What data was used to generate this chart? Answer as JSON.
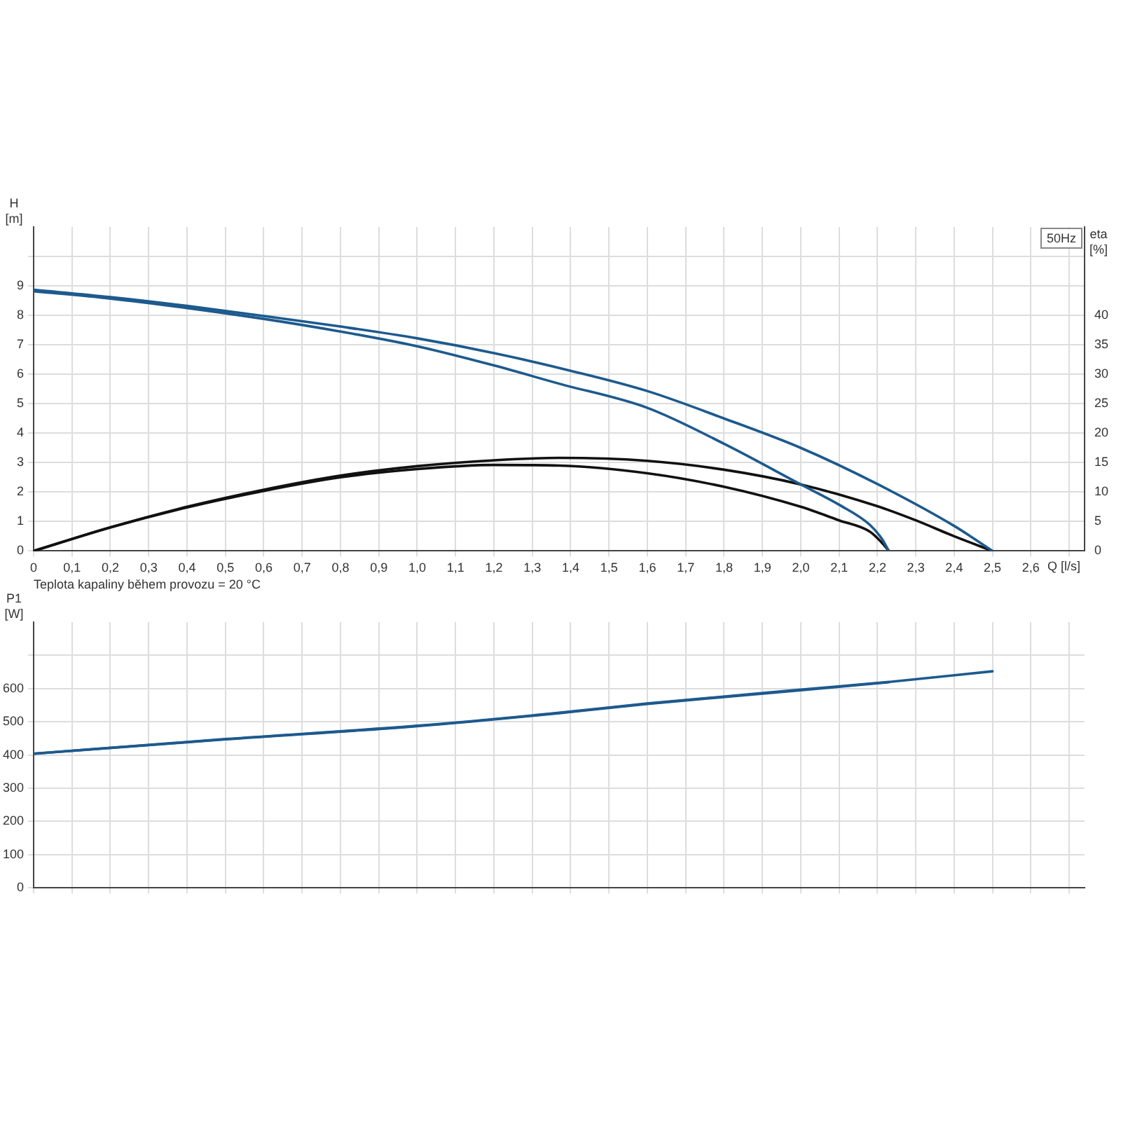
{
  "chart_data": [
    {
      "type": "line",
      "xlabel": "Q [l/s]",
      "ylabel": "H [m]",
      "y2label": "eta [%]",
      "xlim": [
        0,
        2.74
      ],
      "xticks": [
        0,
        {
          "value": 0.1,
          "label": "0,1"
        },
        {
          "value": 0.2,
          "label": "0,2"
        },
        {
          "value": 0.3,
          "label": "0,3"
        },
        {
          "value": 0.4,
          "label": "0,4"
        },
        {
          "value": 0.5,
          "label": "0,5"
        },
        {
          "value": 0.6,
          "label": "0,6"
        },
        {
          "value": 0.7,
          "label": "0,7"
        },
        {
          "value": 0.8,
          "label": "0,8"
        },
        {
          "value": 0.9,
          "label": "0,9"
        },
        {
          "value": 1.0,
          "label": "1,0"
        },
        {
          "value": 1.1,
          "label": "1,1"
        },
        {
          "value": 1.2,
          "label": "1,2"
        },
        {
          "value": 1.3,
          "label": "1,3"
        },
        {
          "value": 1.4,
          "label": "1,4"
        },
        {
          "value": 1.5,
          "label": "1,5"
        },
        {
          "value": 1.6,
          "label": "1,6"
        },
        {
          "value": 1.7,
          "label": "1,7"
        },
        {
          "value": 1.8,
          "label": "1,8"
        },
        {
          "value": 1.9,
          "label": "1,9"
        },
        {
          "value": 2.0,
          "label": "2,0"
        },
        {
          "value": 2.1,
          "label": "2,1"
        },
        {
          "value": 2.2,
          "label": "2,2"
        },
        {
          "value": 2.3,
          "label": "2,3"
        },
        {
          "value": 2.4,
          "label": "2,4"
        },
        {
          "value": 2.5,
          "label": "2,5"
        },
        {
          "value": 2.6,
          "label": "2,6"
        },
        {
          "value": 2.7,
          "label": null
        }
      ],
      "ylim": [
        0,
        11
      ],
      "yticks": [
        0,
        1,
        2,
        3,
        4,
        5,
        6,
        7,
        8,
        9,
        {
          "value": 10,
          "label": null
        }
      ],
      "y2lim": [
        0,
        55
      ],
      "y2ticks": [
        0,
        5,
        10,
        15,
        20,
        25,
        30,
        35,
        40
      ],
      "grid": true,
      "legend": false,
      "marker": "none",
      "annotations": [
        "50Hz",
        "Teplota kapaliny během provozu = 20 °C"
      ],
      "series": [
        {
          "color": "#1d5a8e",
          "x": [
            0,
            0.2,
            0.4,
            0.6,
            0.8,
            1.0,
            1.2,
            1.4,
            1.6,
            1.8,
            2.0,
            2.2,
            2.4,
            2.5
          ],
          "values": [
            8.87,
            8.62,
            8.32,
            7.98,
            7.62,
            7.22,
            6.72,
            6.12,
            5.43,
            4.5,
            3.5,
            2.27,
            0.85,
            0
          ]
        },
        {
          "color": "#1d5a8e",
          "x": [
            0,
            0.2,
            0.4,
            0.6,
            0.8,
            1.0,
            1.2,
            1.37,
            1.6,
            1.8,
            2.0,
            2.1,
            2.18,
            2.21,
            2.23
          ],
          "values": [
            8.82,
            8.57,
            8.25,
            7.88,
            7.45,
            6.95,
            6.3,
            5.68,
            4.86,
            3.64,
            2.26,
            1.57,
            0.89,
            0.44,
            0
          ]
        },
        {
          "color": "#111111",
          "axis": "y2",
          "x": [
            0,
            0.2,
            0.4,
            0.6,
            0.8,
            1.0,
            1.2,
            1.37,
            1.6,
            1.8,
            2.0,
            2.2,
            2.3,
            2.4,
            2.5
          ],
          "values": [
            0,
            4.0,
            7.5,
            10.4,
            12.8,
            14.4,
            15.4,
            15.8,
            15.3,
            13.8,
            11.3,
            7.6,
            5.2,
            2.5,
            0
          ]
        },
        {
          "color": "#111111",
          "axis": "y2",
          "x": [
            0,
            0.2,
            0.4,
            0.6,
            0.8,
            1.0,
            1.2,
            1.37,
            1.6,
            1.8,
            2.0,
            2.1,
            2.18,
            2.21,
            2.23
          ],
          "values": [
            0,
            4.0,
            7.4,
            10.2,
            12.5,
            13.9,
            14.6,
            14.5,
            13.2,
            10.9,
            7.5,
            5.2,
            3.3,
            1.5,
            0
          ]
        }
      ]
    },
    {
      "type": "line",
      "ylabel": "P1 [W]",
      "tick_labels": "y",
      "xlim": [
        0,
        2.74
      ],
      "xticks": [
        0,
        0.1,
        0.2,
        0.3,
        0.4,
        0.5,
        0.6,
        0.7,
        0.8,
        0.9,
        1.0,
        1.1,
        1.2,
        1.3,
        1.4,
        1.5,
        1.6,
        1.7,
        1.8,
        1.9,
        2.0,
        2.1,
        2.2,
        2.3,
        2.4,
        2.5,
        2.6,
        2.7
      ],
      "ylim": [
        0,
        800
      ],
      "yticks": [
        0,
        100,
        200,
        300,
        400,
        500,
        600,
        {
          "value": 700,
          "label": null
        }
      ],
      "grid": true,
      "legend": false,
      "marker": "none",
      "series": [
        {
          "color": "#1d5a8e",
          "x": [
            0,
            0.5,
            1.0,
            1.37,
            1.6,
            2.0,
            2.23,
            2.5
          ],
          "values": [
            404,
            448,
            488,
            527,
            555,
            597,
            620,
            652
          ]
        },
        {
          "color": "#1d5a8e",
          "x": [
            0,
            0.5,
            1.0,
            1.37,
            1.6,
            2.0,
            2.23
          ],
          "values": [
            404,
            447,
            487,
            526,
            554,
            595,
            619
          ]
        }
      ]
    }
  ]
}
